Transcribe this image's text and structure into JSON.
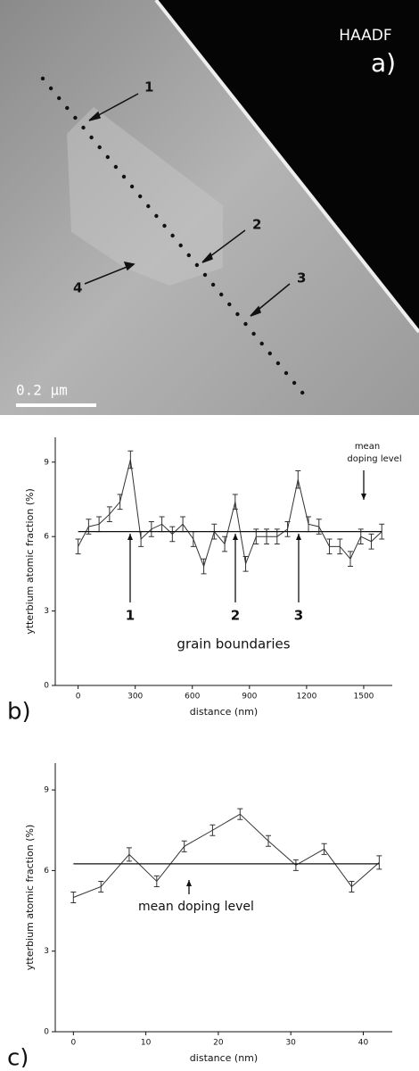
{
  "image_panel": {
    "mode": "HAADF",
    "panel_label": "a)",
    "markers": [
      "1",
      "2",
      "3",
      "4"
    ],
    "scale_bar": "0.2 µm"
  },
  "chart_data": [
    {
      "type": "line",
      "panel_label": "b)",
      "x_label": "distance (nm)",
      "y_label": "ytterbium atomic fraction (%)",
      "xlim": [
        -120,
        1650
      ],
      "ylim": [
        0,
        10
      ],
      "xticks": [
        0,
        300,
        600,
        900,
        1200,
        1500
      ],
      "yticks": [
        0,
        3,
        6,
        9
      ],
      "series": [
        {
          "color": "#333333",
          "x": [
            0,
            55,
            110,
            165,
            220,
            275,
            330,
            385,
            440,
            495,
            550,
            605,
            660,
            715,
            770,
            825,
            880,
            935,
            990,
            1045,
            1100,
            1155,
            1210,
            1265,
            1320,
            1375,
            1430,
            1485,
            1540,
            1595
          ],
          "values": [
            5.6,
            6.4,
            6.5,
            6.9,
            7.4,
            9.1,
            5.9,
            6.3,
            6.5,
            6.1,
            6.5,
            5.9,
            4.8,
            6.2,
            5.7,
            7.4,
            4.9,
            6.0,
            6.0,
            6.0,
            6.3,
            8.3,
            6.5,
            6.4,
            5.6,
            5.6,
            5.1,
            6.0,
            5.8,
            6.2
          ],
          "errors": [
            0.3,
            0.3,
            0.3,
            0.3,
            0.3,
            0.35,
            0.3,
            0.3,
            0.3,
            0.3,
            0.3,
            0.3,
            0.3,
            0.3,
            0.3,
            0.3,
            0.3,
            0.3,
            0.3,
            0.3,
            0.3,
            0.35,
            0.3,
            0.3,
            0.3,
            0.3,
            0.3,
            0.3,
            0.3,
            0.3
          ]
        }
      ],
      "mean_level": 6.2,
      "annotations": [
        "1",
        "2",
        "3",
        "grain boundaries",
        "mean",
        "doping level"
      ]
    },
    {
      "type": "line",
      "panel_label": "c)",
      "x_label": "distance (nm)",
      "y_label": "ytterbium atomic fraction (%)",
      "xlim": [
        -2.5,
        44
      ],
      "ylim": [
        0,
        10
      ],
      "xticks": [
        0,
        10,
        20,
        30,
        40
      ],
      "yticks": [
        0,
        3,
        6,
        9
      ],
      "series": [
        {
          "color": "#333333",
          "x": [
            0,
            3.8,
            7.7,
            11.5,
            15.3,
            19.2,
            23,
            26.9,
            30.7,
            34.6,
            38.4,
            42.2
          ],
          "values": [
            5.0,
            5.4,
            6.6,
            5.6,
            6.9,
            7.5,
            8.1,
            7.1,
            6.2,
            6.8,
            5.4,
            6.3
          ],
          "errors": [
            0.2,
            0.2,
            0.25,
            0.2,
            0.2,
            0.2,
            0.2,
            0.2,
            0.2,
            0.2,
            0.2,
            0.25
          ]
        }
      ],
      "mean_level": 6.25,
      "annotations": [
        "mean doping level"
      ]
    }
  ]
}
